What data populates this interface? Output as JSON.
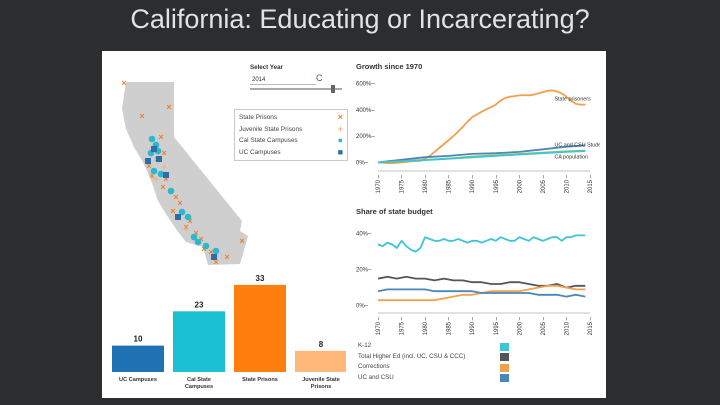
{
  "slide": {
    "title": "California: Educating or Incarcerating?"
  },
  "colors": {
    "background": "#2b2d2f",
    "k12": "#3fc4d4",
    "higher_ed": "#555555",
    "corrections": "#f2a04e",
    "uc_csu": "#4a86b6",
    "prison_marker": "#ef7f2b",
    "juvenile_marker": "#f4b078",
    "csu_marker": "#2bb7cd",
    "uc_marker": "#2f6da8",
    "state_fill": "#cfcfcf"
  },
  "year_select": {
    "label": "Select Year",
    "value": "2014",
    "button": "C",
    "slider_fraction": 0.92
  },
  "map_legend": {
    "items": [
      {
        "label": "State Prisons",
        "marker": "×",
        "icon": "x-marker-icon",
        "color": "#ef7f2b"
      },
      {
        "label": "Juvenile State Prisons",
        "marker": "+",
        "icon": "plus-marker-icon",
        "color": "#f4b078"
      },
      {
        "label": "Cal State Campuses",
        "marker": "●",
        "icon": "circle-marker-icon",
        "color": "#2bb7cd"
      },
      {
        "label": "UC Campuses",
        "marker": "■",
        "icon": "square-marker-icon",
        "color": "#2f6da8"
      }
    ]
  },
  "chart_data": [
    {
      "type": "bar",
      "title": "",
      "categories": [
        "UC Campuses",
        "Cal State Campuses",
        "State Prisons",
        "Juvenile State Prisons"
      ],
      "values": [
        10,
        23,
        33,
        8
      ],
      "colors": [
        "#1f73b5",
        "#1cc0d3",
        "#ff7f0e",
        "#ffb87a"
      ],
      "ylim": [
        0,
        36
      ]
    },
    {
      "type": "line",
      "title": "Growth since 1970",
      "ylim": [
        -50,
        650
      ],
      "xlim": [
        1970,
        2015
      ],
      "x_ticks": [
        "1970",
        "1975",
        "1980",
        "1985",
        "1990",
        "1995",
        "2000",
        "2005",
        "2010",
        "2015"
      ],
      "y_ticks": [
        {
          "value": 0,
          "label": "0%"
        },
        {
          "value": 200,
          "label": "200%"
        },
        {
          "value": 400,
          "label": "400%"
        },
        {
          "value": 600,
          "label": "600%"
        }
      ],
      "annotations": [
        {
          "text": "State prisoners",
          "x": 2010,
          "y": 470
        },
        {
          "text": "UC and CSU Students",
          "x": 2010,
          "y": 120
        },
        {
          "text": "CA population",
          "x": 2010,
          "y": 30
        }
      ],
      "series": [
        {
          "name": "State prisoners",
          "color": "#f2a04e",
          "x": [
            1970,
            1971,
            1972,
            1973,
            1974,
            1975,
            1976,
            1977,
            1978,
            1979,
            1980,
            1981,
            1982,
            1983,
            1984,
            1985,
            1986,
            1987,
            1988,
            1989,
            1990,
            1991,
            1992,
            1993,
            1994,
            1995,
            1996,
            1997,
            1998,
            1999,
            2000,
            2001,
            2002,
            2003,
            2004,
            2005,
            2006,
            2007,
            2008,
            2009,
            2010,
            2011,
            2012,
            2013,
            2014
          ],
          "y": [
            0,
            -2,
            -5,
            -5,
            -3,
            0,
            4,
            8,
            10,
            12,
            30,
            50,
            80,
            110,
            140,
            170,
            200,
            235,
            270,
            310,
            345,
            365,
            385,
            405,
            420,
            440,
            470,
            490,
            500,
            505,
            510,
            512,
            510,
            515,
            525,
            535,
            545,
            548,
            540,
            525,
            500,
            470,
            445,
            440,
            440
          ]
        },
        {
          "name": "UC and CSU Students",
          "color": "#4a86b6",
          "x": [
            1970,
            1975,
            1980,
            1985,
            1990,
            1995,
            2000,
            2005,
            2010,
            2014
          ],
          "y": [
            0,
            20,
            40,
            50,
            65,
            70,
            80,
            100,
            120,
            130
          ]
        },
        {
          "name": "CA population",
          "color": "#9cc257",
          "x": [
            1970,
            1975,
            1980,
            1985,
            1990,
            1995,
            2000,
            2005,
            2010,
            2014
          ],
          "y": [
            0,
            10,
            20,
            30,
            45,
            55,
            65,
            75,
            85,
            90
          ]
        },
        {
          "name": "",
          "color": "#3fc4d4",
          "x": [
            1970,
            1975,
            1980,
            1985,
            1990,
            1995,
            2000,
            2005,
            2010,
            2014
          ],
          "y": [
            0,
            8,
            18,
            28,
            38,
            50,
            60,
            70,
            80,
            86
          ]
        }
      ]
    },
    {
      "type": "line",
      "title": "Share of state budget",
      "ylim": [
        -3,
        47
      ],
      "xlim": [
        1970,
        2015
      ],
      "x_ticks": [
        "1970",
        "1975",
        "1980",
        "1985",
        "1990",
        "1995",
        "2000",
        "2005",
        "2010",
        "2015"
      ],
      "y_ticks": [
        {
          "value": 0,
          "label": "0%"
        },
        {
          "value": 20,
          "label": "20%"
        },
        {
          "value": 40,
          "label": "40%"
        }
      ],
      "series": [
        {
          "name": "K-12",
          "color": "#3fc4d4",
          "x": [
            1970,
            1971,
            1972,
            1973,
            1974,
            1975,
            1976,
            1977,
            1978,
            1979,
            1980,
            1981,
            1982,
            1983,
            1984,
            1985,
            1986,
            1987,
            1988,
            1989,
            1990,
            1991,
            1992,
            1993,
            1994,
            1995,
            1996,
            1997,
            1998,
            1999,
            2000,
            2001,
            2002,
            2003,
            2004,
            2005,
            2006,
            2007,
            2008,
            2009,
            2010,
            2011,
            2012,
            2013,
            2014
          ],
          "y": [
            34,
            33,
            35,
            34,
            32,
            36,
            33,
            31,
            30,
            32,
            38,
            37,
            36,
            36,
            37,
            36,
            36,
            37,
            36,
            35,
            36,
            36,
            35,
            36,
            37,
            36,
            38,
            37,
            36,
            36,
            38,
            37,
            36,
            38,
            37,
            36,
            37,
            38,
            38,
            36,
            38,
            38,
            39,
            39,
            39
          ]
        },
        {
          "name": "Total Higher Ed (incl. UC, CSU & CCC)",
          "color": "#555555",
          "x": [
            1970,
            1972,
            1974,
            1976,
            1978,
            1980,
            1982,
            1984,
            1986,
            1988,
            1990,
            1992,
            1994,
            1996,
            1998,
            2000,
            2002,
            2004,
            2006,
            2008,
            2010,
            2012,
            2014
          ],
          "y": [
            15,
            16,
            15,
            16,
            15,
            15,
            14,
            15,
            14,
            14,
            13,
            13,
            12,
            12,
            13,
            13,
            12,
            11,
            11,
            12,
            10,
            11,
            11
          ]
        },
        {
          "name": "Corrections",
          "color": "#f2a04e",
          "x": [
            1970,
            1974,
            1978,
            1982,
            1984,
            1986,
            1988,
            1990,
            1992,
            1994,
            1996,
            1998,
            2000,
            2002,
            2004,
            2006,
            2008,
            2010,
            2012,
            2014
          ],
          "y": [
            3,
            3,
            3,
            3,
            4,
            5,
            6,
            6,
            7,
            8,
            8,
            8,
            8,
            9,
            10,
            11,
            11,
            10,
            9,
            9
          ]
        },
        {
          "name": "UC and CSU",
          "color": "#4a86b6",
          "x": [
            1970,
            1972,
            1974,
            1976,
            1978,
            1980,
            1982,
            1984,
            1986,
            1988,
            1990,
            1992,
            1994,
            1996,
            1998,
            2000,
            2002,
            2004,
            2006,
            2008,
            2010,
            2012,
            2014
          ],
          "y": [
            8,
            9,
            9,
            9,
            9,
            9,
            8,
            8,
            8,
            8,
            8,
            7,
            7,
            7,
            7,
            7,
            7,
            6,
            6,
            6,
            5,
            6,
            5
          ]
        }
      ]
    }
  ]
}
